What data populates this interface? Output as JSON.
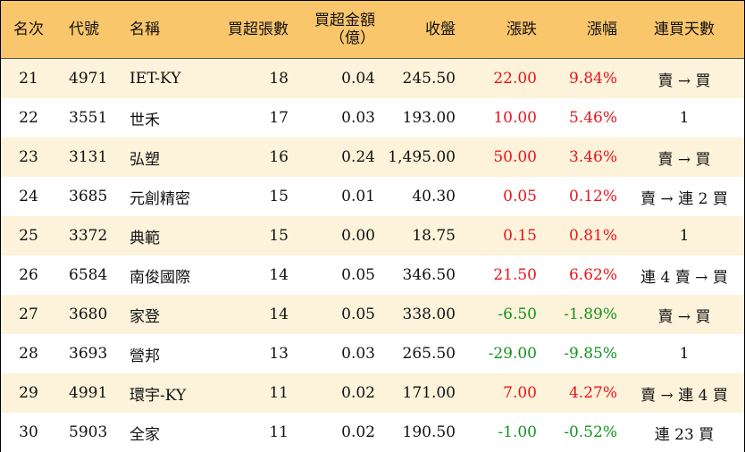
{
  "table": {
    "header": [
      "名次",
      "代號",
      "名稱",
      "買超張數",
      "買超金額\n（億）",
      "收盤",
      "漲跌",
      "漲幅",
      "連買天數"
    ],
    "rows": [
      [
        "21",
        "4971",
        "IET-KY",
        "18",
        "0.04",
        "245.50",
        "22.00",
        "9.84%",
        "賣 → 買"
      ],
      [
        "22",
        "3551",
        "世禾",
        "17",
        "0.03",
        "193.00",
        "10.00",
        "5.46%",
        "1"
      ],
      [
        "23",
        "3131",
        "弘塑",
        "16",
        "0.24",
        "1,495.00",
        "50.00",
        "3.46%",
        "賣 → 買"
      ],
      [
        "24",
        "3685",
        "元創精密",
        "15",
        "0.01",
        "40.30",
        "0.05",
        "0.12%",
        "賣 → 連 2 買"
      ],
      [
        "25",
        "3372",
        "典範",
        "15",
        "0.00",
        "18.75",
        "0.15",
        "0.81%",
        "1"
      ],
      [
        "26",
        "6584",
        "南俊國際",
        "14",
        "0.05",
        "346.50",
        "21.50",
        "6.62%",
        "連 4 賣 → 買"
      ],
      [
        "27",
        "3680",
        "家登",
        "14",
        "0.05",
        "338.00",
        "-6.50",
        "-1.89%",
        "賣 → 買"
      ],
      [
        "28",
        "3693",
        "營邦",
        "13",
        "0.03",
        "265.50",
        "-29.00",
        "-9.85%",
        "1"
      ],
      [
        "29",
        "4991",
        "環宇-KY",
        "11",
        "0.02",
        "171.00",
        "7.00",
        "4.27%",
        "賣 → 連 4 買"
      ],
      [
        "30",
        "5903",
        "全家",
        "11",
        "0.02",
        "190.50",
        "-1.00",
        "-0.52%",
        "連 23 買"
      ]
    ]
  }
}
